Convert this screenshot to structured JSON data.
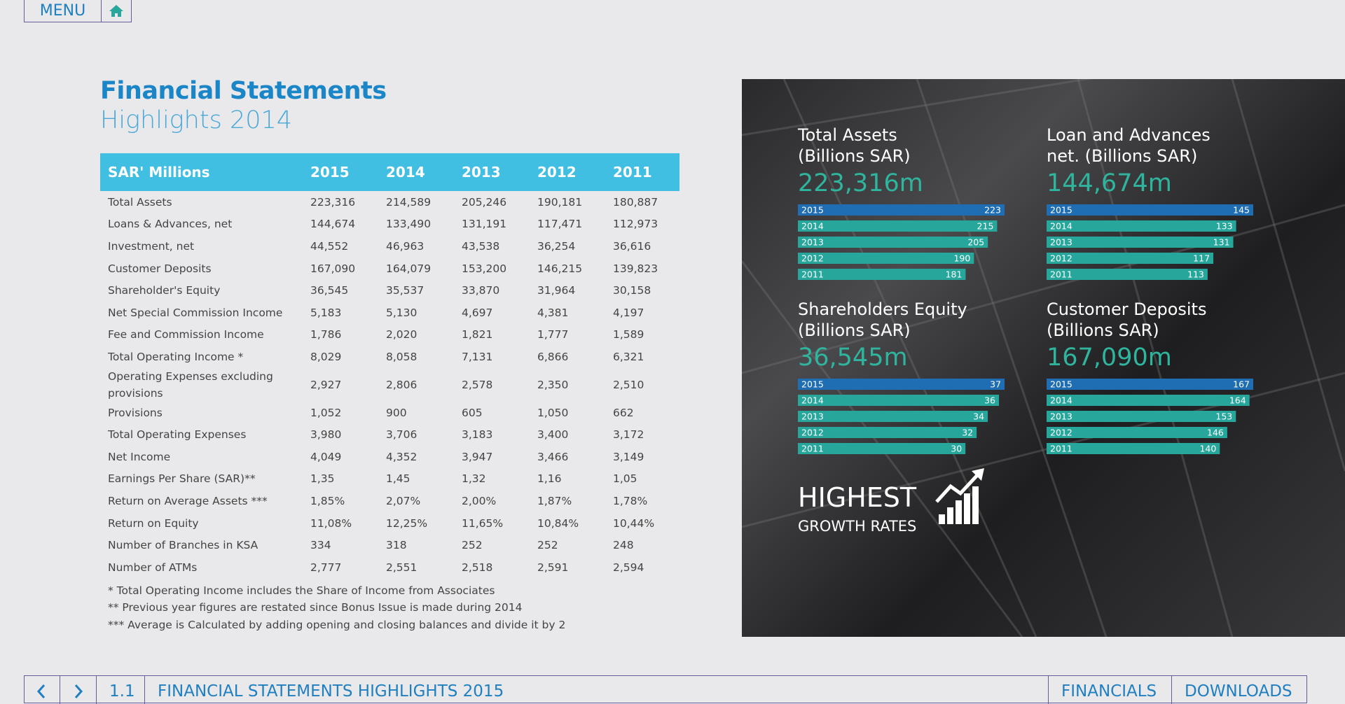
{
  "nav": {
    "menu": "MENU",
    "page_number": "1.1",
    "page_title": "FINANCIAL STATEMENTS HIGHLIGHTS 2015",
    "links": [
      "FINANCIALS",
      "DOWNLOADS"
    ]
  },
  "header": {
    "title": "Financial Statements",
    "subtitle": "Highlights 2014"
  },
  "table": {
    "columns": [
      "SAR' Millions",
      "2015",
      "2014",
      "2013",
      "2012",
      "2011"
    ],
    "rows": [
      [
        "Total Assets",
        "223,316",
        "214,589",
        "205,246",
        "190,181",
        "180,887"
      ],
      [
        "Loans & Advances, net",
        "144,674",
        "133,490",
        "131,191",
        "117,471",
        "112,973"
      ],
      [
        "Investment, net",
        "44,552",
        "46,963",
        "43,538",
        "36,254",
        "36,616"
      ],
      [
        "Customer Deposits",
        "167,090",
        "164,079",
        "153,200",
        "146,215",
        "139,823"
      ],
      [
        "Shareholder's Equity",
        "36,545",
        "35,537",
        "33,870",
        "31,964",
        "30,158"
      ],
      [
        "Net Special Commission Income",
        "5,183",
        "5,130",
        "4,697",
        "4,381",
        "4,197"
      ],
      [
        "Fee and Commission Income",
        "1,786",
        "2,020",
        "1,821",
        "1,777",
        "1,589"
      ],
      [
        "Total Operating Income *",
        "8,029",
        "8,058",
        "7,131",
        "6,866",
        "6,321"
      ],
      [
        "Operating Expenses excluding provisions",
        "2,927",
        "2,806",
        "2,578",
        "2,350",
        "2,510"
      ],
      [
        "Provisions",
        "1,052",
        "900",
        "605",
        "1,050",
        "662"
      ],
      [
        "Total Operating Expenses",
        "3,980",
        "3,706",
        "3,183",
        "3,400",
        "3,172"
      ],
      [
        "Net Income",
        "4,049",
        "4,352",
        "3,947",
        "3,466",
        "3,149"
      ],
      [
        "Earnings Per Share (SAR)**",
        "1,35",
        "1,45",
        "1,32",
        "1,16",
        "1,05"
      ],
      [
        "Return on Average Assets ***",
        "1,85%",
        "2,07%",
        "2,00%",
        "1,87%",
        "1,78%"
      ],
      [
        "Return on Equity",
        "11,08%",
        "12,25%",
        "11,65%",
        "10,84%",
        "10,44%"
      ],
      [
        "Number of Branches in KSA",
        "334",
        "318",
        "252",
        "252",
        "248"
      ],
      [
        "Number of ATMs",
        "2,777",
        "2,551",
        "2,518",
        "2,591",
        "2,594"
      ]
    ]
  },
  "footnotes": [
    "* Total Operating Income includes the Share of Income from Associates",
    "** Previous year figures are restated since Bonus Issue is made during 2014",
    "*** Average is Calculated by adding opening and closing balances and divide it by 2"
  ],
  "panel": {
    "charts": [
      {
        "type": "bar",
        "title": "Total Assets",
        "subtitle": "(Billions SAR)",
        "headline": "223,316m",
        "categories": [
          "2015",
          "2014",
          "2013",
          "2012",
          "2011"
        ],
        "values": [
          223,
          215,
          205,
          190,
          181
        ]
      },
      {
        "type": "bar",
        "title": "Loan and Advances",
        "subtitle": "net. (Billions SAR)",
        "headline": "144,674m",
        "categories": [
          "2015",
          "2014",
          "2013",
          "2012",
          "2011"
        ],
        "values": [
          145,
          133,
          131,
          117,
          113
        ]
      },
      {
        "type": "bar",
        "title": "Shareholders Equity",
        "subtitle": "(Billions SAR)",
        "headline": "36,545m",
        "categories": [
          "2015",
          "2014",
          "2013",
          "2012",
          "2011"
        ],
        "values": [
          37,
          36,
          34,
          32,
          30
        ]
      },
      {
        "type": "bar",
        "title": "Customer Deposits",
        "subtitle": "(Billions SAR)",
        "headline": "167,090m",
        "categories": [
          "2015",
          "2014",
          "2013",
          "2012",
          "2011"
        ],
        "values": [
          167,
          164,
          153,
          146,
          140
        ]
      }
    ],
    "bar_colors": [
      "#1f6db3",
      "#27a69c"
    ],
    "banner": {
      "title": "HIGHEST",
      "subtitle": "GROWTH RATES"
    }
  }
}
